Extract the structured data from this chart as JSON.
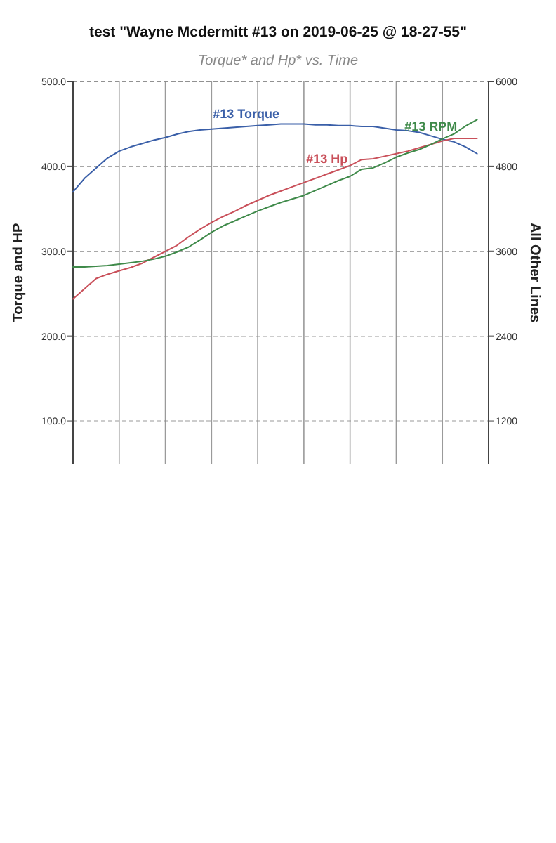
{
  "chart_data": {
    "type": "line",
    "title": "test \"Wayne Mcdermitt #13 on 2019-06-25 @ 18-27-55\"",
    "subtitle": "Torque* and Hp* vs. Time",
    "ylabel": "Torque and HP",
    "y2label": "All Other Lines",
    "categories": [
      null,
      null,
      null,
      null,
      null,
      null,
      null,
      null,
      null,
      null,
      null,
      null,
      null,
      null,
      null,
      null,
      null,
      null,
      null,
      null,
      null,
      null,
      null,
      null,
      null,
      null,
      null,
      null,
      null,
      null,
      null,
      null,
      null,
      null,
      null,
      null,
      null
    ],
    "ylim": [
      50,
      500
    ],
    "yticks": [
      {
        "value": 500,
        "label": "500.0"
      },
      {
        "value": 400,
        "label": "400.0"
      },
      {
        "value": 300,
        "label": "300.0"
      },
      {
        "value": 200,
        "label": "200.0"
      },
      {
        "value": 100,
        "label": "100.0"
      }
    ],
    "y2lim": [
      600,
      6000
    ],
    "y2ticks": [
      6000,
      4800,
      3600,
      2400,
      1200
    ],
    "tick_labels": "y",
    "grid": true,
    "marker": "none",
    "line_style": "solid",
    "series": [
      {
        "name": "#13 Torque",
        "color": "#3a5fa8",
        "values": [
          370,
          386,
          398,
          410,
          418,
          423,
          427,
          431,
          434,
          438,
          441,
          443,
          444,
          445,
          446,
          447,
          448,
          449,
          450,
          450,
          450,
          449,
          449,
          448,
          448,
          447,
          447,
          445,
          443,
          442,
          440,
          436,
          432,
          429,
          423,
          415,
          null
        ]
      },
      {
        "name": "#13 Hp",
        "color": "#c9505a",
        "values": [
          244,
          256,
          268,
          273,
          277,
          281,
          286,
          293,
          300,
          307,
          317,
          326,
          334,
          341,
          347,
          354,
          360,
          366,
          371,
          376,
          381,
          386,
          391,
          396,
          401,
          408,
          409,
          412,
          415,
          418,
          422,
          426,
          430,
          433,
          433,
          433,
          null
        ]
      },
      {
        "name": "#13 RPM",
        "color": "#3f8a4a",
        "axis": "y2",
        "values": [
          3380,
          3380,
          3390,
          3400,
          3420,
          3440,
          3460,
          3490,
          3530,
          3590,
          3660,
          3760,
          3870,
          3960,
          4030,
          4100,
          4170,
          4230,
          4290,
          4340,
          4390,
          4460,
          4530,
          4600,
          4660,
          4760,
          4780,
          4850,
          4930,
          4990,
          5040,
          5110,
          5190,
          5260,
          5370,
          5460,
          null
        ]
      }
    ]
  }
}
